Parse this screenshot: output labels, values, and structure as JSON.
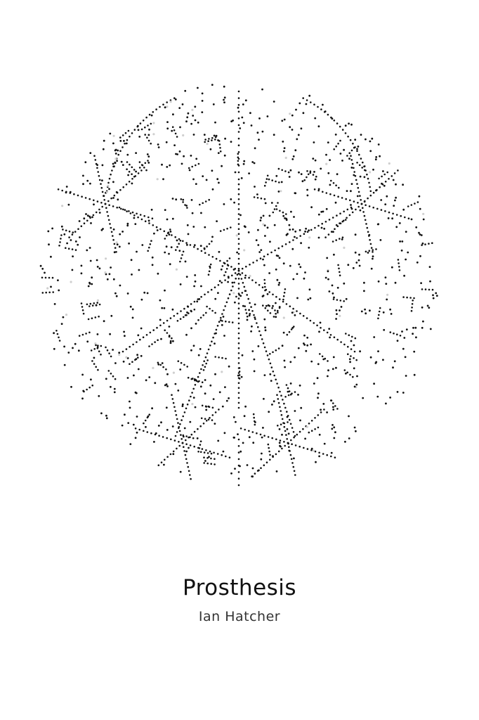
{
  "book": {
    "title": "Prosthesis",
    "author": "Ian Hatcher"
  },
  "artwork": {
    "description_icon": "dotted-sphere-icon",
    "dot_color": "#111111",
    "faint_dot_color": "#cfcfcf",
    "background": "#ffffff"
  }
}
